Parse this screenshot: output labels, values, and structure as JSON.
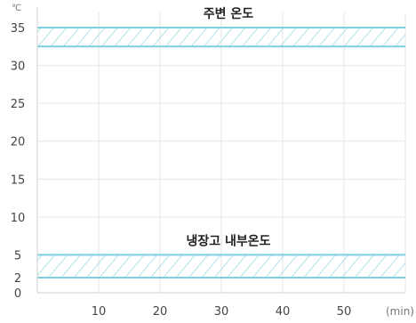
{
  "chart_data": {
    "type": "area",
    "y_unit": "℃",
    "x_unit": "(min)",
    "xlim": [
      0,
      60
    ],
    "ylim": [
      0,
      37
    ],
    "x_ticks": [
      10,
      20,
      30,
      40,
      50
    ],
    "y_ticks": [
      0,
      2,
      5,
      10,
      15,
      20,
      25,
      30,
      35
    ],
    "grid": true,
    "bands": [
      {
        "name": "주변 온도",
        "y_low": 32.5,
        "y_high": 35
      },
      {
        "name": "냉장고 내부온도",
        "y_low": 2,
        "y_high": 5
      }
    ]
  },
  "colors": {
    "band_line": "#7ecfe0",
    "hatch": "#7ecfe0",
    "grid": "#e6e6e6",
    "axis": "#d0d0d0",
    "tick_text": "#444444",
    "unit_text": "#777777",
    "label_text": "#222222"
  }
}
